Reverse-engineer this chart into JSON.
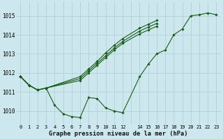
{
  "title": "Graphe pression niveau de la mer (hPa)",
  "bg_color": "#cce8ee",
  "grid_color": "#aacccc",
  "line_color": "#1a5c1a",
  "marker_color": "#1a5c1a",
  "xlim": [
    -0.5,
    23.5
  ],
  "ylim": [
    1009.3,
    1015.7
  ],
  "yticks": [
    1010,
    1011,
    1012,
    1013,
    1014,
    1015
  ],
  "xtick_labels": [
    "0",
    "1",
    "2",
    "3",
    "4",
    "5",
    "6",
    "7",
    "8",
    "9",
    "10",
    "11",
    "12",
    "",
    "14",
    "15",
    "16",
    "17",
    "18",
    "19",
    "20",
    "21",
    "22",
    "23"
  ],
  "series": [
    {
      "x": [
        0,
        1,
        2,
        3,
        4,
        5,
        6,
        7,
        8,
        9,
        10,
        11,
        12,
        14,
        15,
        16,
        17,
        18,
        19,
        20,
        21,
        22,
        23
      ],
      "y": [
        1011.8,
        1011.35,
        1011.1,
        1011.2,
        1010.3,
        1009.85,
        1009.7,
        1009.65,
        1010.7,
        1010.65,
        1010.15,
        1010.0,
        1009.9,
        1011.8,
        1012.45,
        1013.0,
        1013.2,
        1014.0,
        1014.3,
        1015.0,
        1015.05,
        1015.15,
        1015.05
      ]
    },
    {
      "x": [
        0,
        1,
        2,
        3,
        7,
        8,
        9,
        10,
        11,
        12,
        14,
        15,
        16
      ],
      "y": [
        1011.8,
        1011.35,
        1011.1,
        1011.2,
        1011.8,
        1012.2,
        1012.6,
        1013.05,
        1013.45,
        1013.8,
        1014.35,
        1014.55,
        1014.75
      ]
    },
    {
      "x": [
        0,
        1,
        2,
        3,
        7,
        8,
        9,
        10,
        11,
        12,
        14,
        15,
        16
      ],
      "y": [
        1011.8,
        1011.35,
        1011.1,
        1011.2,
        1011.7,
        1012.1,
        1012.5,
        1012.9,
        1013.3,
        1013.65,
        1014.2,
        1014.4,
        1014.6
      ]
    },
    {
      "x": [
        0,
        1,
        2,
        3,
        7,
        8,
        9,
        10,
        11,
        12,
        14,
        15,
        16
      ],
      "y": [
        1011.8,
        1011.35,
        1011.1,
        1011.2,
        1011.6,
        1012.0,
        1012.4,
        1012.8,
        1013.2,
        1013.55,
        1014.05,
        1014.25,
        1014.45
      ]
    }
  ]
}
